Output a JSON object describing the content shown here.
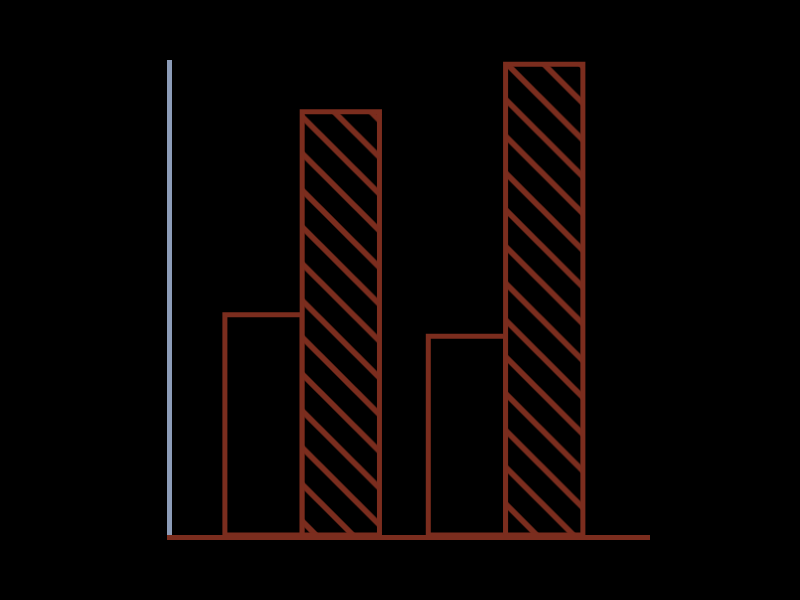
{
  "chart_data": {
    "type": "bar",
    "categories": [
      null,
      null
    ],
    "series": [
      {
        "color": "#7b2d1e",
        "values": [
          51,
          46
        ]
      },
      {
        "color": "#7b2d1e",
        "marker": "hatch",
        "values": [
          98,
          109
        ]
      }
    ],
    "ylim": [
      0,
      110
    ],
    "grid": false,
    "tick_labels": false
  }
}
